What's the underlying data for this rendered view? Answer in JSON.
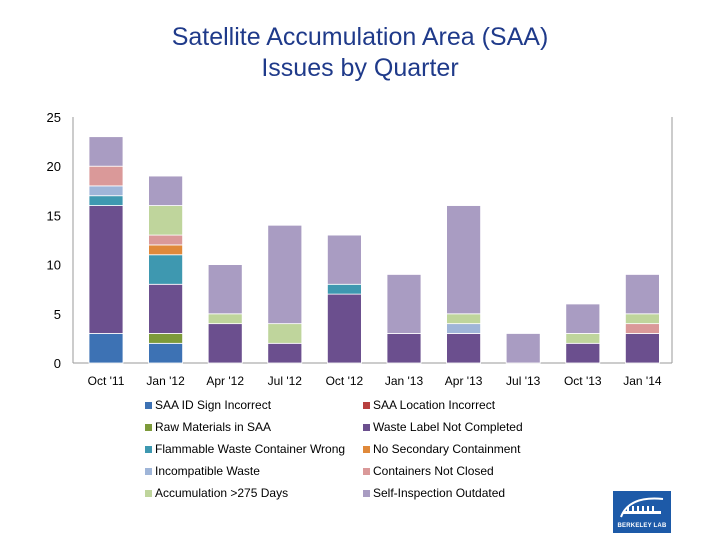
{
  "chart_data": {
    "type": "bar",
    "stacked": true,
    "title": "Satellite Accumulation Area (SAA) Issues by Quarter",
    "title_lines": [
      "Satellite Accumulation Area (SAA)",
      "Issues by Quarter"
    ],
    "xlabel": "",
    "ylabel": "",
    "ylim": [
      0,
      25
    ],
    "yticks": [
      "0",
      "5",
      "10",
      "15",
      "20",
      "25"
    ],
    "categories": [
      "Oct '11",
      "Jan '12",
      "Apr '12",
      "Jul '12",
      "Oct '12",
      "Jan '13",
      "Apr '13",
      "Jul '13",
      "Oct '13",
      "Jan '14"
    ],
    "series": [
      {
        "name": "SAA ID Sign Incorrect",
        "color": "#3d72b4",
        "values": [
          3,
          2,
          0,
          0,
          0,
          0,
          0,
          0,
          0,
          0
        ]
      },
      {
        "name": "SAA Location Incorrect",
        "color": "#b8403f",
        "values": [
          0,
          0,
          0,
          0,
          0,
          0,
          0,
          0,
          0,
          0
        ]
      },
      {
        "name": "Raw Materials in SAA",
        "color": "#7d9a3a",
        "values": [
          0,
          1,
          0,
          0,
          0,
          0,
          0,
          0,
          0,
          0
        ]
      },
      {
        "name": "Waste Label Not Completed",
        "color": "#6b4f8e",
        "values": [
          13,
          5,
          4,
          2,
          7,
          3,
          3,
          0,
          2,
          3
        ]
      },
      {
        "name": "Flammable Waste Container Wrong",
        "color": "#3e98b0",
        "values": [
          1,
          3,
          0,
          0,
          1,
          0,
          0,
          0,
          0,
          0
        ]
      },
      {
        "name": "No Secondary Containment",
        "color": "#e0893a",
        "values": [
          0,
          1,
          0,
          0,
          0,
          0,
          0,
          0,
          0,
          0
        ]
      },
      {
        "name": "Incompatible Waste",
        "color": "#9fb5d8",
        "values": [
          1,
          0,
          0,
          0,
          0,
          0,
          1,
          0,
          0,
          0
        ]
      },
      {
        "name": "Containers Not Closed",
        "color": "#da9999",
        "values": [
          2,
          1,
          0,
          0,
          0,
          0,
          0,
          0,
          0,
          1
        ]
      },
      {
        "name": "Accumulation >275 Days",
        "color": "#bfd59c",
        "values": [
          0,
          3,
          1,
          2,
          0,
          0,
          1,
          0,
          1,
          1
        ]
      },
      {
        "name": "Self-Inspection Outdated",
        "color": "#a99cc2",
        "values": [
          3,
          3,
          5,
          10,
          5,
          6,
          11,
          3,
          3,
          4
        ]
      }
    ],
    "legend_position": "bottom",
    "grid": false
  }
}
